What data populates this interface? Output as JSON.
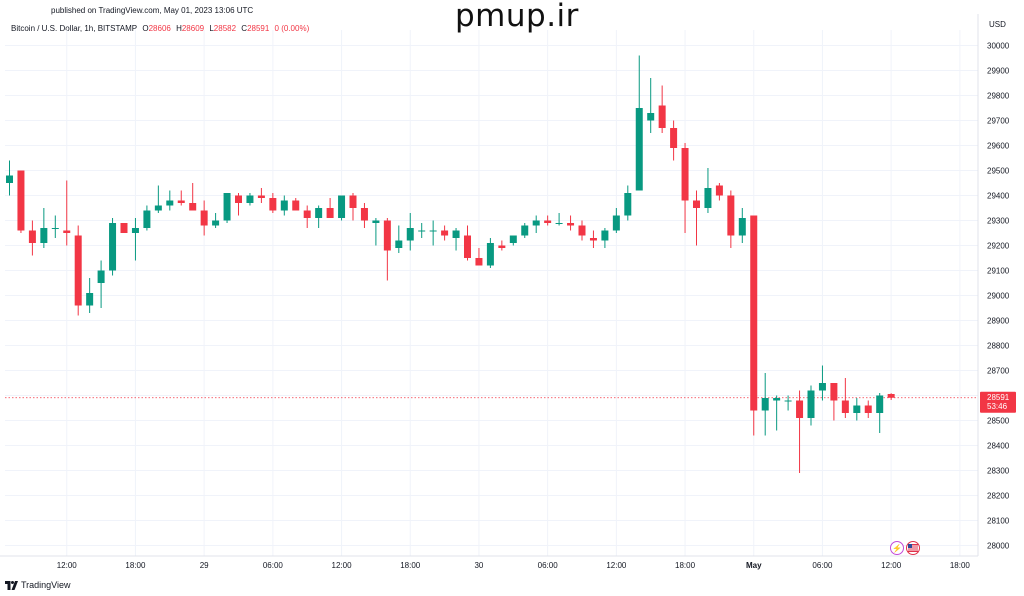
{
  "header": {
    "published": "published on TradingView.com, May 01, 2023 13:06 UTC",
    "watermark": "pmup.ir",
    "symbol": "Bitcoin / U.S. Dollar, 1h, BITSTAMP",
    "o_label": "O",
    "o_value": "28606",
    "h_label": "H",
    "h_value": "28609",
    "l_label": "L",
    "l_value": "28582",
    "c_label": "C",
    "c_value": "28591",
    "change": "0 (0.00%)",
    "currency": "USD"
  },
  "footer": {
    "brand": "TradingView",
    "icons": [
      "lightning-icon",
      "us-flag-icon"
    ]
  },
  "colors": {
    "up": "#089981",
    "down": "#f23645",
    "grid": "#f0f3fa",
    "text": "#131722",
    "last_price_line": "#f23645"
  },
  "chart_data": {
    "type": "candlestick",
    "title": "Bitcoin / U.S. Dollar, 1h, BITSTAMP",
    "y_unit": "USD",
    "ylim": [
      27980,
      30080
    ],
    "y_ticks": [
      28000,
      28100,
      28200,
      28300,
      28400,
      28500,
      28600,
      28700,
      28800,
      28900,
      29000,
      29100,
      29200,
      29300,
      29400,
      29500,
      29600,
      29700,
      29800,
      29900,
      30000
    ],
    "x_ticks": [
      {
        "label": "12:00",
        "index": 5
      },
      {
        "label": "18:00",
        "index": 11
      },
      {
        "label": "29",
        "index": 17
      },
      {
        "label": "06:00",
        "index": 23
      },
      {
        "label": "12:00",
        "index": 29
      },
      {
        "label": "18:00",
        "index": 35
      },
      {
        "label": "30",
        "index": 41
      },
      {
        "label": "06:00",
        "index": 47
      },
      {
        "label": "12:00",
        "index": 53
      },
      {
        "label": "18:00",
        "index": 59
      },
      {
        "label": "May",
        "index": 65
      },
      {
        "label": "06:00",
        "index": 71
      },
      {
        "label": "12:00",
        "index": 77
      },
      {
        "label": "18:00",
        "index": 83
      }
    ],
    "last_price": {
      "value": 28591,
      "label": "28591",
      "countdown": "53:46"
    },
    "grid": true,
    "candles": [
      {
        "o": 29450,
        "h": 29540,
        "l": 29400,
        "c": 29480
      },
      {
        "o": 29500,
        "h": 29500,
        "l": 29250,
        "c": 29260
      },
      {
        "o": 29260,
        "h": 29300,
        "l": 29160,
        "c": 29210
      },
      {
        "o": 29210,
        "h": 29350,
        "l": 29190,
        "c": 29270
      },
      {
        "o": 29270,
        "h": 29320,
        "l": 29230,
        "c": 29270
      },
      {
        "o": 29260,
        "h": 29460,
        "l": 29200,
        "c": 29250
      },
      {
        "o": 29240,
        "h": 29280,
        "l": 28920,
        "c": 28960
      },
      {
        "o": 28960,
        "h": 29070,
        "l": 28930,
        "c": 29010
      },
      {
        "o": 29050,
        "h": 29140,
        "l": 28950,
        "c": 29100
      },
      {
        "o": 29100,
        "h": 29310,
        "l": 29080,
        "c": 29290
      },
      {
        "o": 29290,
        "h": 29290,
        "l": 29250,
        "c": 29250
      },
      {
        "o": 29250,
        "h": 29310,
        "l": 29140,
        "c": 29270
      },
      {
        "o": 29270,
        "h": 29360,
        "l": 29260,
        "c": 29340
      },
      {
        "o": 29340,
        "h": 29440,
        "l": 29330,
        "c": 29360
      },
      {
        "o": 29360,
        "h": 29420,
        "l": 29340,
        "c": 29380
      },
      {
        "o": 29380,
        "h": 29420,
        "l": 29360,
        "c": 29370
      },
      {
        "o": 29370,
        "h": 29450,
        "l": 29360,
        "c": 29340
      },
      {
        "o": 29340,
        "h": 29380,
        "l": 29240,
        "c": 29280
      },
      {
        "o": 29280,
        "h": 29330,
        "l": 29270,
        "c": 29300
      },
      {
        "o": 29300,
        "h": 29410,
        "l": 29290,
        "c": 29410
      },
      {
        "o": 29400,
        "h": 29410,
        "l": 29320,
        "c": 29370
      },
      {
        "o": 29370,
        "h": 29410,
        "l": 29360,
        "c": 29400
      },
      {
        "o": 29400,
        "h": 29430,
        "l": 29370,
        "c": 29390
      },
      {
        "o": 29390,
        "h": 29410,
        "l": 29330,
        "c": 29340
      },
      {
        "o": 29340,
        "h": 29400,
        "l": 29320,
        "c": 29380
      },
      {
        "o": 29380,
        "h": 29390,
        "l": 29340,
        "c": 29340
      },
      {
        "o": 29340,
        "h": 29360,
        "l": 29270,
        "c": 29310
      },
      {
        "o": 29310,
        "h": 29360,
        "l": 29270,
        "c": 29350
      },
      {
        "o": 29350,
        "h": 29390,
        "l": 29310,
        "c": 29310
      },
      {
        "o": 29310,
        "h": 29400,
        "l": 29300,
        "c": 29400
      },
      {
        "o": 29400,
        "h": 29410,
        "l": 29300,
        "c": 29350
      },
      {
        "o": 29350,
        "h": 29370,
        "l": 29270,
        "c": 29300
      },
      {
        "o": 29290,
        "h": 29310,
        "l": 29200,
        "c": 29300
      },
      {
        "o": 29300,
        "h": 29310,
        "l": 29060,
        "c": 29180
      },
      {
        "o": 29190,
        "h": 29280,
        "l": 29170,
        "c": 29220
      },
      {
        "o": 29220,
        "h": 29330,
        "l": 29180,
        "c": 29270
      },
      {
        "o": 29260,
        "h": 29290,
        "l": 29230,
        "c": 29260
      },
      {
        "o": 29260,
        "h": 29300,
        "l": 29200,
        "c": 29260
      },
      {
        "o": 29260,
        "h": 29280,
        "l": 29220,
        "c": 29240
      },
      {
        "o": 29230,
        "h": 29270,
        "l": 29180,
        "c": 29260
      },
      {
        "o": 29240,
        "h": 29280,
        "l": 29140,
        "c": 29150
      },
      {
        "o": 29150,
        "h": 29190,
        "l": 29120,
        "c": 29120
      },
      {
        "o": 29120,
        "h": 29230,
        "l": 29110,
        "c": 29210
      },
      {
        "o": 29200,
        "h": 29220,
        "l": 29180,
        "c": 29190
      },
      {
        "o": 29210,
        "h": 29240,
        "l": 29200,
        "c": 29240
      },
      {
        "o": 29240,
        "h": 29290,
        "l": 29230,
        "c": 29280
      },
      {
        "o": 29280,
        "h": 29320,
        "l": 29250,
        "c": 29300
      },
      {
        "o": 29300,
        "h": 29320,
        "l": 29280,
        "c": 29290
      },
      {
        "o": 29290,
        "h": 29330,
        "l": 29280,
        "c": 29290
      },
      {
        "o": 29290,
        "h": 29320,
        "l": 29260,
        "c": 29280
      },
      {
        "o": 29280,
        "h": 29300,
        "l": 29220,
        "c": 29240
      },
      {
        "o": 29230,
        "h": 29260,
        "l": 29190,
        "c": 29220
      },
      {
        "o": 29220,
        "h": 29270,
        "l": 29190,
        "c": 29260
      },
      {
        "o": 29260,
        "h": 29350,
        "l": 29250,
        "c": 29320
      },
      {
        "o": 29320,
        "h": 29440,
        "l": 29300,
        "c": 29410
      },
      {
        "o": 29420,
        "h": 29960,
        "l": 29420,
        "c": 29750
      },
      {
        "o": 29700,
        "h": 29870,
        "l": 29650,
        "c": 29730
      },
      {
        "o": 29760,
        "h": 29840,
        "l": 29650,
        "c": 29670
      },
      {
        "o": 29670,
        "h": 29700,
        "l": 29540,
        "c": 29590
      },
      {
        "o": 29590,
        "h": 29610,
        "l": 29250,
        "c": 29380
      },
      {
        "o": 29380,
        "h": 29420,
        "l": 29200,
        "c": 29350
      },
      {
        "o": 29350,
        "h": 29510,
        "l": 29330,
        "c": 29430
      },
      {
        "o": 29440,
        "h": 29450,
        "l": 29380,
        "c": 29400
      },
      {
        "o": 29400,
        "h": 29420,
        "l": 29190,
        "c": 29240
      },
      {
        "o": 29240,
        "h": 29350,
        "l": 29210,
        "c": 29310
      },
      {
        "o": 29320,
        "h": 29320,
        "l": 28440,
        "c": 28540
      },
      {
        "o": 28540,
        "h": 28690,
        "l": 28440,
        "c": 28590
      },
      {
        "o": 28580,
        "h": 28600,
        "l": 28460,
        "c": 28590
      },
      {
        "o": 28580,
        "h": 28600,
        "l": 28540,
        "c": 28580
      },
      {
        "o": 28580,
        "h": 28620,
        "l": 28290,
        "c": 28510
      },
      {
        "o": 28510,
        "h": 28640,
        "l": 28480,
        "c": 28620
      },
      {
        "o": 28620,
        "h": 28720,
        "l": 28580,
        "c": 28650
      },
      {
        "o": 28650,
        "h": 28650,
        "l": 28500,
        "c": 28580
      },
      {
        "o": 28580,
        "h": 28670,
        "l": 28510,
        "c": 28530
      },
      {
        "o": 28530,
        "h": 28590,
        "l": 28500,
        "c": 28560
      },
      {
        "o": 28560,
        "h": 28580,
        "l": 28510,
        "c": 28530
      },
      {
        "o": 28530,
        "h": 28610,
        "l": 28450,
        "c": 28600
      },
      {
        "o": 28606,
        "h": 28609,
        "l": 28582,
        "c": 28591
      }
    ]
  }
}
